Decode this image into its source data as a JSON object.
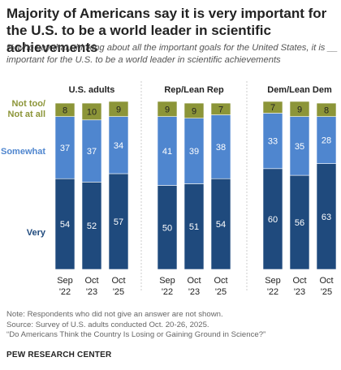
{
  "title": "Majority of Americans say it is very important for the U.S. to be a world leader in scientific achievements",
  "subtitle": "% who say that, thinking about all the important goals for the United States, it is __ important for the U.S. to be a world leader in scientific achievements",
  "notes": {
    "note": "Note: Respondents who did not give an answer are not shown.",
    "source": "Source: Survey of U.S. adults conducted Oct. 20-26, 2025.",
    "report": "“Do Americans Think the Country Is Losing or Gaining Ground in Science?”"
  },
  "footer": {
    "org": "PEW RESEARCH CENTER"
  },
  "colors": {
    "very": "#1f4a7d",
    "somewhat": "#4f86cf",
    "not_too": "#8c9538"
  },
  "chart_data": {
    "type": "bar",
    "stacked": true,
    "periods": [
      "Sep '22",
      "Oct '23",
      "Oct '25"
    ],
    "segment_labels": {
      "not_too": [
        "Not too/",
        "Not at all"
      ],
      "somewhat": "Somewhat",
      "very": "Very"
    },
    "panels": [
      {
        "name": "U.S. adults",
        "very": [
          54,
          52,
          57
        ],
        "somewhat": [
          37,
          37,
          34
        ],
        "not_too": [
          8,
          10,
          9
        ]
      },
      {
        "name": "Rep/Lean Rep",
        "very": [
          50,
          51,
          54
        ],
        "somewhat": [
          41,
          39,
          38
        ],
        "not_too": [
          9,
          9,
          7
        ]
      },
      {
        "name": "Dem/Lean Dem",
        "very": [
          60,
          56,
          63
        ],
        "somewhat": [
          33,
          35,
          28
        ],
        "not_too": [
          7,
          9,
          8
        ]
      }
    ],
    "ylim": [
      0,
      100
    ]
  }
}
